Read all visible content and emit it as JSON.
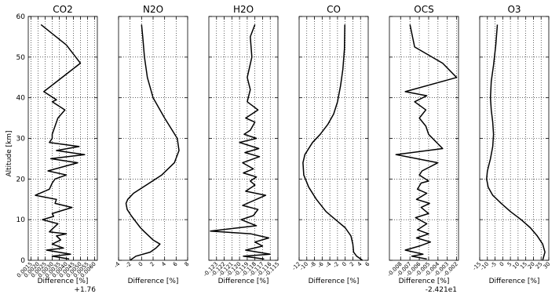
{
  "figure": {
    "ylabel": "Altitude [km]",
    "yticks": [
      0,
      10,
      20,
      30,
      40,
      50,
      60
    ],
    "ylim": [
      0,
      60
    ]
  },
  "chart_data": [
    {
      "type": "line",
      "title": "CO2",
      "xlabel": "Difference [%]",
      "offset_label": "+1.76",
      "xlim": [
        0.0013,
        0.0062
      ],
      "xticks": [
        0.0015,
        0.002,
        0.0025,
        0.003,
        0.0035,
        0.004,
        0.0045,
        0.005,
        0.0055,
        0.006
      ],
      "xtick_labels": [
        "0.0015",
        "0.0020",
        "0.0025",
        "0.0030",
        "0.0035",
        "0.0040",
        "0.0045",
        "0.0050",
        "0.0055",
        "0.0060"
      ],
      "series": [
        {
          "x": [
            0.0042,
            0.003,
            0.0043,
            0.0026,
            0.0038,
            0.003,
            0.0036,
            0.0033,
            0.004,
            0.0028,
            0.0034,
            0.0023,
            0.0031,
            0.003,
            0.0044,
            0.0032,
            0.0033,
            0.0018,
            0.0028,
            0.003,
            0.0032,
            0.004,
            0.0027,
            0.0048,
            0.0029,
            0.0053,
            0.0033,
            0.0049,
            0.0028,
            0.003,
            0.003,
            0.0034,
            0.0039,
            0.003,
            0.0033,
            0.0024,
            0.005,
            0.004,
            0.0022
          ],
          "y": [
            0.3,
            1,
            1.5,
            2.5,
            3,
            4,
            5,
            6,
            6.5,
            7,
            9,
            10,
            10.8,
            11.5,
            13,
            14,
            15,
            16,
            17.5,
            19,
            20,
            21,
            22,
            24,
            25,
            26,
            27,
            28,
            29,
            30,
            31,
            35,
            37,
            39,
            39.5,
            41.5,
            48.5,
            53,
            58
          ]
        }
      ]
    },
    {
      "type": "line",
      "title": "N2O",
      "xlabel": "Difference [%]",
      "xlim": [
        -4,
        8
      ],
      "xticks": [
        -4,
        -2,
        0,
        2,
        4,
        6,
        8
      ],
      "xtick_labels": [
        "-4",
        "-2",
        "0",
        "2",
        "4",
        "6",
        "8"
      ],
      "series": [
        {
          "x": [
            -2.0,
            -1.0,
            1.5,
            2.5,
            3.2,
            2.0,
            0.5,
            -0.2,
            -1.0,
            -1.8,
            -2.5,
            -2.7,
            -2.4,
            -1.4,
            0.8,
            3.5,
            5.7,
            6.5,
            6.2,
            4.0,
            2.0,
            1.0,
            0.5,
            0.2,
            0.0
          ],
          "y": [
            0,
            1,
            2,
            3,
            4,
            5,
            7,
            8,
            9.5,
            11,
            12.5,
            14,
            15,
            16.5,
            18.5,
            21,
            24,
            27,
            30,
            35,
            40,
            45,
            50,
            55,
            58
          ]
        }
      ]
    },
    {
      "type": "line",
      "title": "H2O",
      "xlabel": "Difference [%]",
      "xlim": [
        -0.124,
        -0.115
      ],
      "xticks": [
        -0.123,
        -0.122,
        -0.121,
        -0.12,
        -0.119,
        -0.118,
        -0.117,
        -0.116,
        -0.115
      ],
      "xtick_labels": [
        "-0.123",
        "-0.122",
        "-0.121",
        "-0.120",
        "-0.119",
        "-0.118",
        "-0.117",
        "-0.116",
        "-0.115"
      ],
      "series": [
        {
          "x": [
            -0.1168,
            -0.1195,
            -0.116,
            -0.1192,
            -0.117,
            -0.118,
            -0.1162,
            -0.1185,
            -0.1238,
            -0.1178,
            -0.1198,
            -0.1182,
            -0.1176,
            -0.1196,
            -0.1166,
            -0.1192,
            -0.118,
            -0.1186,
            -0.1178,
            -0.1195,
            -0.1182,
            -0.1196,
            -0.1174,
            -0.1193,
            -0.1175,
            -0.12,
            -0.1178,
            -0.1194,
            -0.1186,
            -0.118,
            -0.1192,
            -0.1176,
            -0.119,
            -0.1186,
            -0.119,
            -0.1184,
            -0.1186,
            -0.118
          ],
          "y": [
            0.3,
            1,
            1.5,
            2.5,
            3.5,
            4.5,
            5.5,
            6.5,
            7.2,
            8.5,
            10,
            11,
            12.5,
            13.5,
            16,
            17,
            18.5,
            19.5,
            20.5,
            21.5,
            22.5,
            24,
            25.5,
            26.5,
            27.5,
            29,
            30,
            31,
            32,
            34,
            35,
            37,
            39,
            42,
            45,
            50,
            55,
            58
          ]
        }
      ]
    },
    {
      "type": "line",
      "title": "CO",
      "xlabel": "Difference [%]",
      "xlim": [
        -12,
        6
      ],
      "xticks": [
        -12,
        -10,
        -8,
        -6,
        -4,
        -2,
        0,
        2,
        4,
        6
      ],
      "xtick_labels": [
        "-12",
        "-10",
        "-8",
        "-6",
        "-4",
        "-2",
        "0",
        "2",
        "4",
        "6"
      ],
      "series": [
        {
          "x": [
            4.5,
            3.0,
            2.2,
            2.0,
            1.5,
            0.0,
            -2.5,
            -5.0,
            -7.5,
            -9.5,
            -10.8,
            -11.0,
            -10.5,
            -8.5,
            -6.5,
            -4.5,
            -3.0,
            -2.0,
            -1.2,
            -0.6,
            -0.2,
            -0.1
          ],
          "y": [
            0,
            1,
            2,
            4,
            6,
            8,
            10,
            12,
            15,
            18,
            21,
            24,
            26,
            29,
            31,
            33.5,
            36,
            39,
            43,
            47,
            52,
            58
          ]
        }
      ]
    },
    {
      "type": "line",
      "title": "OCS",
      "xlabel": "Difference [%]",
      "offset_label": "-2.421e1",
      "xlim": [
        -0.0092,
        -0.0018
      ],
      "xticks": [
        -0.008,
        -0.007,
        -0.006,
        -0.005,
        -0.004,
        -0.003,
        -0.002
      ],
      "xtick_labels": [
        "-0.008",
        "-0.007",
        "-0.006",
        "-0.005",
        "-0.004",
        "-0.003",
        "-0.002"
      ],
      "series": [
        {
          "x": [
            -0.0052,
            -0.0068,
            -0.0056,
            -0.0075,
            -0.006,
            -0.0048,
            -0.0063,
            -0.005,
            -0.0062,
            -0.0052,
            -0.0064,
            -0.005,
            -0.0058,
            -0.0049,
            -0.0063,
            -0.0052,
            -0.0062,
            -0.0058,
            -0.005,
            -0.006,
            -0.0057,
            -0.004,
            -0.0085,
            -0.0035,
            -0.005,
            -0.0053,
            -0.006,
            -0.0053,
            -0.0065,
            -0.0052,
            -0.0075,
            -0.002,
            -0.0035,
            -0.0065,
            -0.007
          ],
          "y": [
            0.3,
            1,
            1.5,
            2.5,
            3.5,
            4.5,
            5.5,
            6.5,
            7.5,
            9,
            10.5,
            11.5,
            13,
            14,
            15,
            16.5,
            17.5,
            19,
            19.5,
            21,
            22,
            24,
            26,
            27.5,
            31,
            33,
            35,
            37,
            39,
            40.5,
            41.5,
            45,
            48.5,
            52.5,
            58
          ]
        }
      ]
    },
    {
      "type": "line",
      "title": "O3",
      "xlabel": "Difference [%]",
      "xlim": [
        -15,
        30
      ],
      "xticks": [
        -15,
        -10,
        -5,
        0,
        5,
        10,
        15,
        20,
        25,
        30
      ],
      "xtick_labels": [
        "-15",
        "-10",
        "-5",
        "0",
        "5",
        "10",
        "15",
        "20",
        "25",
        "30"
      ],
      "series": [
        {
          "x": [
            26.0,
            27.5,
            26.0,
            22.5,
            18.0,
            12.0,
            5.0,
            -1.0,
            -6.5,
            -9.5,
            -10.5,
            -10.0,
            -8.0,
            -6.5,
            -6.0,
            -6.5,
            -7.5,
            -8.0,
            -7.5,
            -6.0,
            -4.5,
            -3.5
          ],
          "y": [
            0,
            2,
            4,
            6,
            8,
            10,
            12,
            14,
            16,
            18,
            20,
            22,
            25,
            28,
            31,
            34,
            37,
            40,
            44,
            48,
            53,
            58
          ]
        }
      ]
    }
  ]
}
